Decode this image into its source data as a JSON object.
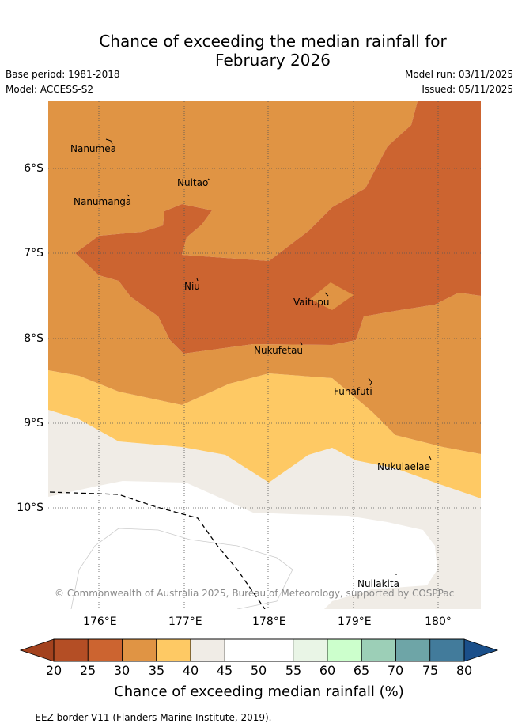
{
  "header": {
    "title_line1": "Chance of exceeding the median rainfall for",
    "title_line2": "February 2026",
    "base_period": "Base period: 1981-2018",
    "model": "Model: ACCESS-S2",
    "model_run": "Model run: 03/11/2025",
    "issued": "Issued: 05/11/2025"
  },
  "map": {
    "places": [
      "Nanumea",
      "Nuitao",
      "Nanumanga",
      "Niu",
      "Vaitupu",
      "Nukufetau",
      "Funafuti",
      "Nukulaelae",
      "Nuilakita"
    ],
    "lat_labels": [
      "6°S",
      "7°S",
      "8°S",
      "9°S",
      "10°S"
    ],
    "lon_labels": [
      "176°E",
      "177°E",
      "178°E",
      "179°E",
      "180°"
    ],
    "copyright": "© Commonwealth of Australia 2025, Bureau of Meteorology, supported by COSPPac"
  },
  "colorbar": {
    "labels": [
      "20",
      "25",
      "30",
      "35",
      "40",
      "45",
      "50",
      "55",
      "60",
      "65",
      "70",
      "75",
      "80"
    ],
    "colors": [
      "#b44e25",
      "#cc6430",
      "#e09444",
      "#fec964",
      "#f0ece6",
      "#ffffff",
      "#ffffff",
      "#e9f5e6",
      "#ccffcc",
      "#9ccfb7",
      "#6ea5a7",
      "#427b9b"
    ],
    "under_color": "#a3421e",
    "over_color": "#1a4f8a",
    "title": "Chance of exceeding median rainfall (%)"
  },
  "footer": {
    "eez_note": "-- -- -- EEZ border V11 (Flanders Marine Institute, 2019)."
  }
}
